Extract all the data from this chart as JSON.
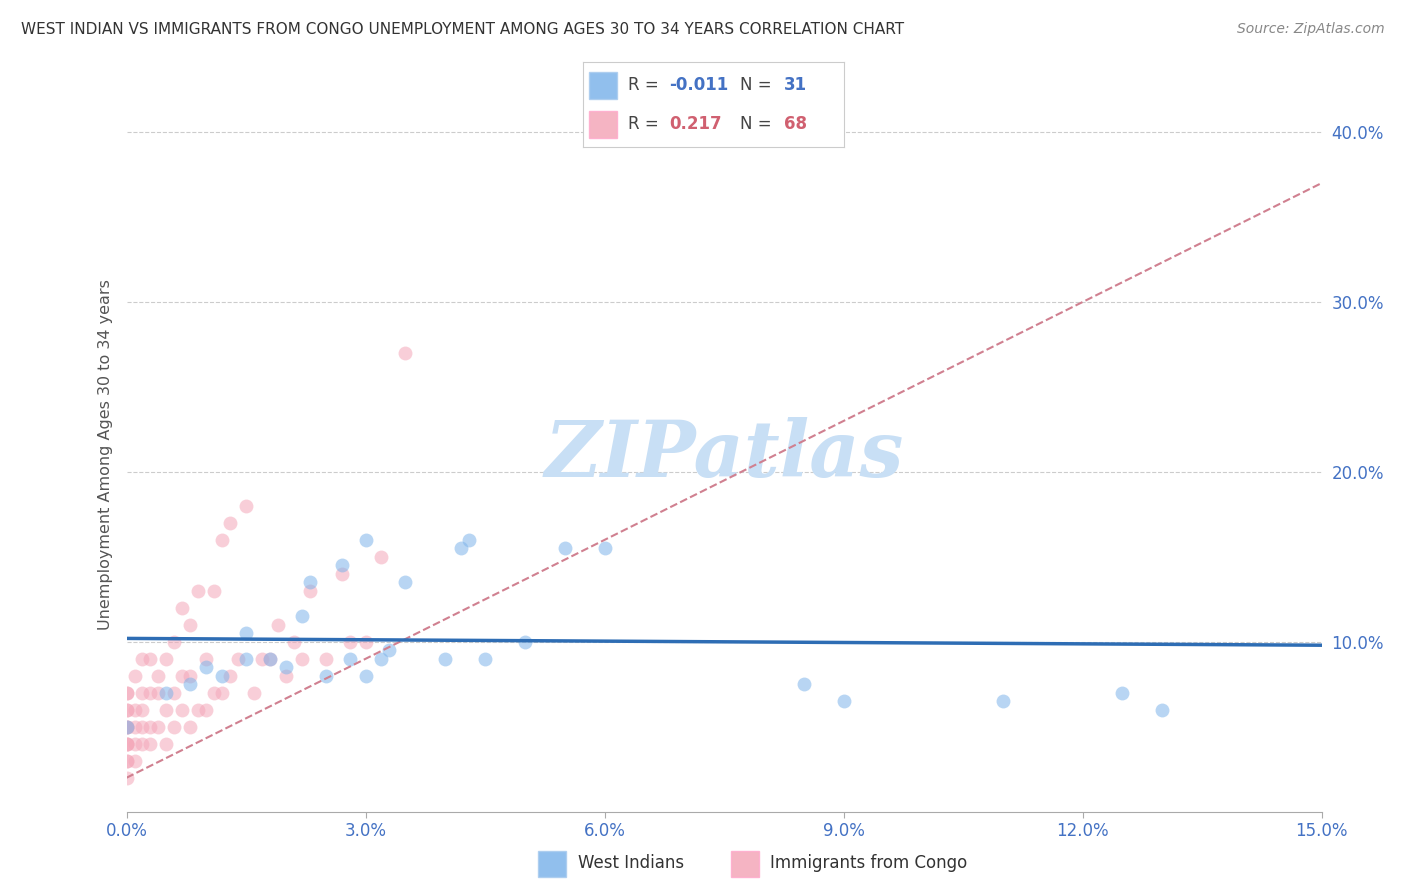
{
  "title": "WEST INDIAN VS IMMIGRANTS FROM CONGO UNEMPLOYMENT AMONG AGES 30 TO 34 YEARS CORRELATION CHART",
  "source": "Source: ZipAtlas.com",
  "ylabel": "Unemployment Among Ages 30 to 34 years",
  "xlim": [
    0.0,
    0.15
  ],
  "ylim": [
    0.0,
    0.42
  ],
  "xticks": [
    0.0,
    0.03,
    0.06,
    0.09,
    0.12,
    0.15
  ],
  "xtick_labels": [
    "0.0%",
    "3.0%",
    "6.0%",
    "9.0%",
    "12.0%",
    "15.0%"
  ],
  "ytick_labels_right": [
    "10.0%",
    "20.0%",
    "30.0%",
    "40.0%"
  ],
  "ytick_vals_right": [
    0.1,
    0.2,
    0.3,
    0.4
  ],
  "background_color": "#ffffff",
  "watermark": "ZIPatlas",
  "watermark_color": "#c8dff5",
  "title_color": "#333333",
  "source_color": "#888888",
  "axis_label_color": "#555555",
  "tick_color": "#4472c4",
  "grid_color": "#cccccc",
  "blue_color": "#7eb4ea",
  "pink_color": "#f4a7b9",
  "blue_line_color": "#2e6db4",
  "pink_line_color": "#d08090",
  "west_indian_x": [
    0.0,
    0.005,
    0.008,
    0.01,
    0.012,
    0.015,
    0.015,
    0.018,
    0.02,
    0.022,
    0.023,
    0.025,
    0.027,
    0.028,
    0.03,
    0.03,
    0.032,
    0.033,
    0.035,
    0.04,
    0.042,
    0.043,
    0.045,
    0.05,
    0.055,
    0.06,
    0.085,
    0.09,
    0.11,
    0.125,
    0.13
  ],
  "west_indian_y": [
    0.05,
    0.07,
    0.075,
    0.085,
    0.08,
    0.09,
    0.105,
    0.09,
    0.085,
    0.115,
    0.135,
    0.08,
    0.145,
    0.09,
    0.08,
    0.16,
    0.09,
    0.095,
    0.135,
    0.09,
    0.155,
    0.16,
    0.09,
    0.1,
    0.155,
    0.155,
    0.075,
    0.065,
    0.065,
    0.07,
    0.06
  ],
  "congo_x": [
    0.0,
    0.0,
    0.0,
    0.0,
    0.0,
    0.0,
    0.0,
    0.0,
    0.0,
    0.0,
    0.0,
    0.0,
    0.0,
    0.001,
    0.001,
    0.001,
    0.001,
    0.001,
    0.002,
    0.002,
    0.002,
    0.002,
    0.002,
    0.003,
    0.003,
    0.003,
    0.003,
    0.004,
    0.004,
    0.004,
    0.005,
    0.005,
    0.005,
    0.006,
    0.006,
    0.006,
    0.007,
    0.007,
    0.007,
    0.008,
    0.008,
    0.008,
    0.009,
    0.009,
    0.01,
    0.01,
    0.011,
    0.011,
    0.012,
    0.012,
    0.013,
    0.013,
    0.014,
    0.015,
    0.016,
    0.017,
    0.018,
    0.019,
    0.02,
    0.021,
    0.022,
    0.023,
    0.025,
    0.027,
    0.028,
    0.03,
    0.032,
    0.035
  ],
  "congo_y": [
    0.02,
    0.03,
    0.03,
    0.04,
    0.04,
    0.04,
    0.05,
    0.05,
    0.05,
    0.06,
    0.06,
    0.07,
    0.07,
    0.03,
    0.04,
    0.05,
    0.06,
    0.08,
    0.04,
    0.05,
    0.06,
    0.07,
    0.09,
    0.04,
    0.05,
    0.07,
    0.09,
    0.05,
    0.07,
    0.08,
    0.04,
    0.06,
    0.09,
    0.05,
    0.07,
    0.1,
    0.06,
    0.08,
    0.12,
    0.05,
    0.08,
    0.11,
    0.06,
    0.13,
    0.06,
    0.09,
    0.07,
    0.13,
    0.07,
    0.16,
    0.08,
    0.17,
    0.09,
    0.18,
    0.07,
    0.09,
    0.09,
    0.11,
    0.08,
    0.1,
    0.09,
    0.13,
    0.09,
    0.14,
    0.1,
    0.1,
    0.15,
    0.27
  ],
  "marker_size": 100,
  "marker_alpha": 0.55,
  "congo_trendline_x": [
    0.0,
    0.15
  ],
  "congo_trendline_y": [
    0.02,
    0.37
  ],
  "west_trendline_x": [
    0.0,
    0.15
  ],
  "west_trendline_y": [
    0.102,
    0.098
  ]
}
